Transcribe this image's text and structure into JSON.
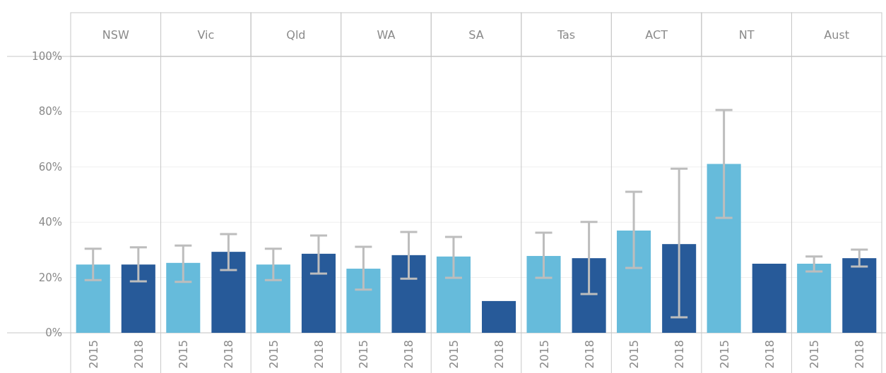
{
  "chart_data": {
    "type": "bar",
    "categories": [
      "NSW",
      "Vic",
      "Qld",
      "WA",
      "SA",
      "Tas",
      "ACT",
      "NT",
      "Aust"
    ],
    "series": [
      {
        "name": "2015",
        "color": "#66bbdb",
        "values": [
          24.7,
          25.3,
          24.7,
          23.2,
          27.6,
          27.8,
          37.0,
          61.1,
          25.0
        ],
        "errors": [
          [
            19.1,
            30.4
          ],
          [
            18.4,
            31.6
          ],
          [
            19.1,
            30.4
          ],
          [
            15.6,
            31.1
          ],
          [
            19.9,
            34.7
          ],
          [
            19.9,
            36.2
          ],
          [
            23.5,
            51.0
          ],
          [
            41.6,
            80.6
          ],
          [
            22.2,
            27.6
          ]
        ]
      },
      {
        "name": "2018",
        "color": "#275a99",
        "values": [
          24.7,
          29.3,
          28.6,
          28.1,
          11.5,
          27.0,
          32.1,
          25.0,
          27.0
        ],
        "errors": [
          [
            18.6,
            30.9
          ],
          [
            22.7,
            35.7
          ],
          [
            21.4,
            35.2
          ],
          [
            19.6,
            36.5
          ],
          null,
          [
            14.0,
            40.1
          ],
          [
            5.6,
            59.4
          ],
          null,
          [
            24.0,
            30.1
          ]
        ]
      }
    ],
    "ylim": [
      0,
      100
    ],
    "yticks": [
      {
        "value": 0,
        "label": "0%"
      },
      {
        "value": 20,
        "label": "20%"
      },
      {
        "value": 40,
        "label": "40%"
      },
      {
        "value": 60,
        "label": "60%"
      },
      {
        "value": 80,
        "label": "80%"
      },
      {
        "value": 100,
        "label": "100%"
      }
    ],
    "grid": "y"
  }
}
